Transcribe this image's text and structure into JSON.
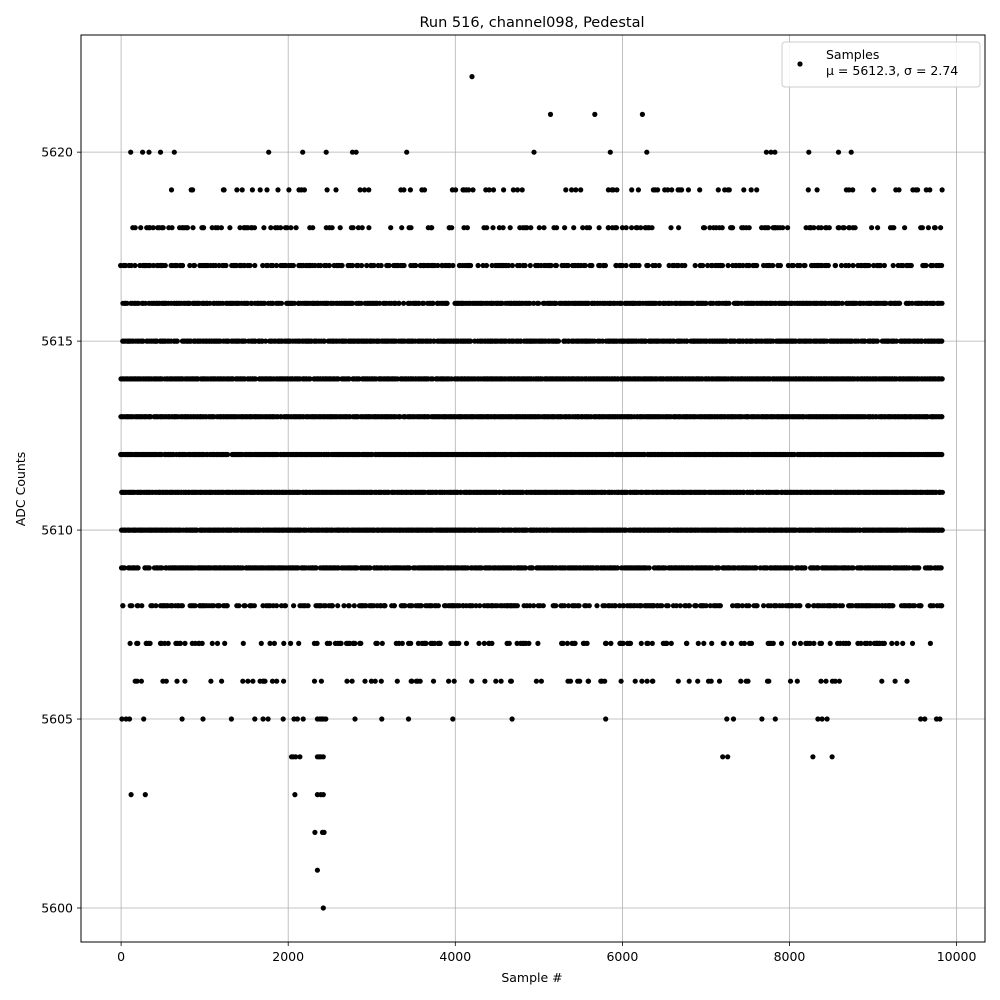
{
  "chart_data": {
    "type": "scatter",
    "title": "Run 516, channel098, Pedestal",
    "xlabel": "Sample #",
    "ylabel": "ADC Counts",
    "xlim": [
      -480,
      10340
    ],
    "ylim": [
      5599.1,
      5623.1
    ],
    "xticks": [
      0,
      2000,
      4000,
      6000,
      8000,
      10000
    ],
    "yticks": [
      5600,
      5605,
      5610,
      5615,
      5620
    ],
    "xtick_labels": [
      "0",
      "2000",
      "4000",
      "6000",
      "8000",
      "10000"
    ],
    "ytick_labels": [
      "5600",
      "5605",
      "5610",
      "5615",
      "5620"
    ],
    "grid": true,
    "legend_position": "top-right",
    "series": [
      {
        "name": "Samples",
        "label_line2": "μ = 5612.3, σ = 2.74",
        "color": "#000000",
        "marker": "circle",
        "x_range": [
          0,
          9830
        ],
        "rows": [
          {
            "y": 5600,
            "x": [
              2420
            ]
          },
          {
            "y": 5601,
            "x": [
              2350
            ]
          },
          {
            "y": 5602,
            "x": [
              2320,
              2410,
              2430
            ]
          },
          {
            "y": 5603,
            "x": [
              120,
              290,
              2080,
              2350,
              2390,
              2420
            ]
          },
          {
            "y": 5604,
            "x": [
              2040,
              2060,
              2090,
              2140,
              2350,
              2370,
              2390,
              2420,
              7200,
              7260,
              8280,
              8510
            ]
          },
          {
            "y": 5605,
            "x": [
              10,
              60,
              100,
              270,
              730,
              980,
              1320,
              1600,
              1700,
              1760,
              1940,
              2070,
              2110,
              2180,
              2350,
              2380,
              2400,
              2420,
              2450,
              2800,
              3120,
              3440,
              3970,
              4680,
              5800,
              7250,
              7330,
              7670,
              7830,
              8340,
              8390,
              8450,
              9570,
              9620,
              9760,
              9800
            ]
          },
          {
            "y": 5621,
            "x": [
              5140,
              5670,
              6240
            ]
          },
          {
            "y": 5622,
            "x": [
              4200
            ]
          }
        ],
        "dense_rows": [
          {
            "y": 5606,
            "density": 0.12,
            "gaps": []
          },
          {
            "y": 5607,
            "density": 0.22,
            "gaps": []
          },
          {
            "y": 5608,
            "density": 0.45,
            "gaps": []
          },
          {
            "y": 5609,
            "density": 0.8,
            "gaps": []
          },
          {
            "y": 5610,
            "density": 0.95,
            "gaps": []
          },
          {
            "y": 5611,
            "density": 0.95,
            "gaps": []
          },
          {
            "y": 5612,
            "density": 0.95,
            "gaps": []
          },
          {
            "y": 5613,
            "density": 0.95,
            "gaps": []
          },
          {
            "y": 5614,
            "density": 0.9,
            "gaps": []
          },
          {
            "y": 5615,
            "density": 0.8,
            "gaps": []
          },
          {
            "y": 5616,
            "density": 0.7,
            "gaps": []
          },
          {
            "y": 5617,
            "density": 0.45,
            "gaps": []
          },
          {
            "y": 5618,
            "density": 0.22,
            "gaps": []
          },
          {
            "y": 5619,
            "density": 0.1,
            "gaps": []
          },
          {
            "y": 5620,
            "density": 0.03,
            "gaps": []
          }
        ]
      }
    ]
  }
}
